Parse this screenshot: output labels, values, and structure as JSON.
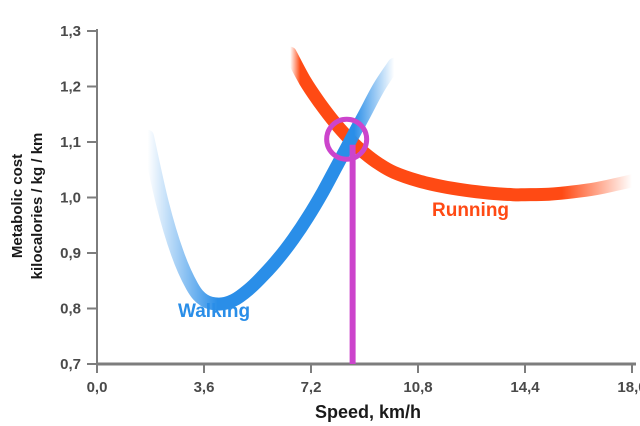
{
  "chart_data": {
    "type": "line",
    "title": "",
    "xlabel": "Speed, km/h",
    "ylabel_lines": [
      "Metabolic cost",
      "kilocalories / kg / km"
    ],
    "xlim": [
      0,
      18
    ],
    "ylim": [
      0.7,
      1.3
    ],
    "x_ticks": [
      0,
      3.6,
      7.2,
      10.8,
      14.4,
      18.0
    ],
    "x_tick_labels": [
      "0,0",
      "3,6",
      "7,2",
      "10,8",
      "14,4",
      "18,0"
    ],
    "y_ticks": [
      0.7,
      0.8,
      0.9,
      1.0,
      1.1,
      1.2,
      1.3
    ],
    "y_tick_labels": [
      "0,7",
      "0,8",
      "0,9",
      "1,0",
      "1,1",
      "1,2",
      "1,3"
    ],
    "grid": false,
    "series": [
      {
        "name": "Walking",
        "color": "#2a8ee8",
        "x": [
          1.7,
          2.2,
          2.7,
          3.2,
          3.6,
          4.1,
          4.6,
          5.1,
          5.6,
          6.1,
          6.6,
          7.1,
          7.6,
          8.1,
          8.6,
          9.0,
          9.5,
          10.0
        ],
        "y": [
          1.11,
          0.99,
          0.9,
          0.84,
          0.815,
          0.808,
          0.815,
          0.834,
          0.86,
          0.89,
          0.925,
          0.965,
          1.01,
          1.06,
          1.11,
          1.15,
          1.2,
          1.24
        ]
      },
      {
        "name": "Running",
        "color": "#ff4a14",
        "x": [
          6.5,
          7.0,
          7.5,
          8.0,
          8.5,
          9.0,
          9.5,
          10.0,
          10.8,
          11.6,
          12.4,
          13.2,
          14.0,
          14.4,
          15.2,
          16.0,
          16.8,
          17.5,
          18.0
        ],
        "y": [
          1.26,
          1.21,
          1.17,
          1.135,
          1.105,
          1.08,
          1.06,
          1.045,
          1.03,
          1.02,
          1.013,
          1.008,
          1.005,
          1.005,
          1.006,
          1.01,
          1.016,
          1.024,
          1.03
        ]
      }
    ],
    "annotations": [
      {
        "type": "intersection-circle",
        "x": 8.4,
        "y": 1.105,
        "color": "#cc44cc"
      },
      {
        "type": "vertical-line",
        "x": 8.6,
        "from_y": 0.7,
        "to_y": 1.095,
        "color": "#cc44cc"
      }
    ],
    "labels": {
      "walking": "Walking",
      "running": "Running"
    }
  }
}
